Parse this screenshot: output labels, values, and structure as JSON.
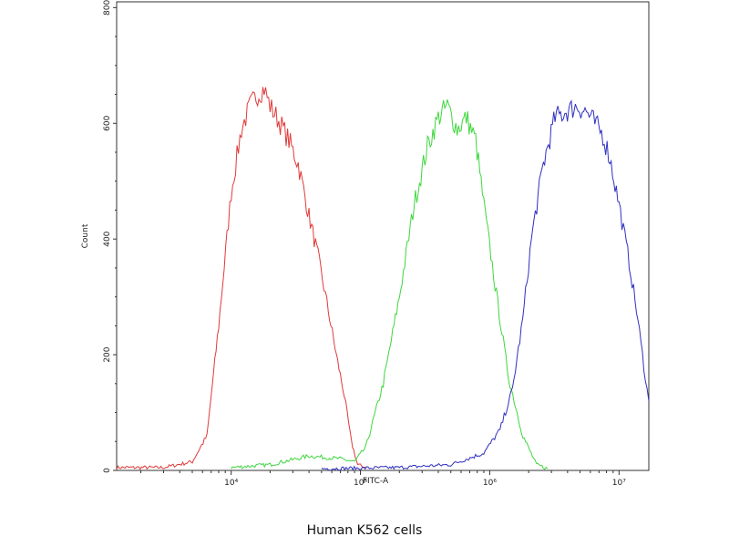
{
  "chart_data": {
    "type": "line",
    "xlabel": "FITC-A",
    "ylabel": "Count",
    "x_scale": "log",
    "xlim": [
      1300,
      17000000
    ],
    "ylim": [
      0,
      810
    ],
    "y_ticks": [
      0,
      200,
      400,
      600,
      800
    ],
    "x_tick_values": [
      10000,
      100000,
      1000000,
      10000000
    ],
    "x_tick_labels": [
      "10⁴",
      "10⁵",
      "10⁶",
      "10⁷"
    ],
    "grid": false,
    "legend": "none",
    "series": [
      {
        "color": "#e03a3a",
        "x": [
          1300,
          3000,
          5000,
          6500,
          8000,
          10000,
          12000,
          14000,
          16000,
          18000,
          20000,
          24000,
          28000,
          33000,
          40000,
          47000,
          55000,
          65000,
          75000,
          85000,
          95000,
          110000
        ],
        "y": [
          5,
          5,
          15,
          60,
          250,
          480,
          590,
          630,
          650,
          660,
          630,
          600,
          570,
          530,
          440,
          370,
          290,
          200,
          130,
          50,
          10,
          5
        ]
      },
      {
        "color": "#3ed63e",
        "x": [
          10000,
          20000,
          40000,
          70000,
          90000,
          110000,
          150000,
          200000,
          260000,
          330000,
          400000,
          470000,
          560000,
          660000,
          780000,
          900000,
          1100000,
          1400000,
          1800000,
          2300000,
          2800000
        ],
        "y": [
          5,
          10,
          25,
          20,
          15,
          40,
          150,
          300,
          460,
          560,
          610,
          630,
          590,
          610,
          570,
          460,
          320,
          160,
          60,
          10,
          3
        ]
      },
      {
        "color": "#3030c0",
        "x": [
          50000,
          200000,
          500000,
          900000,
          1200000,
          1500000,
          1800000,
          2100000,
          2600000,
          3200000,
          3900000,
          4700000,
          5600000,
          6500000,
          7500000,
          8500000,
          10000000,
          12000000,
          14000000,
          16000000,
          17000000
        ],
        "y": [
          3,
          5,
          10,
          30,
          70,
          140,
          260,
          400,
          530,
          610,
          620,
          630,
          620,
          600,
          580,
          540,
          460,
          360,
          260,
          160,
          120
        ]
      }
    ]
  },
  "caption": "Human K562 cells"
}
